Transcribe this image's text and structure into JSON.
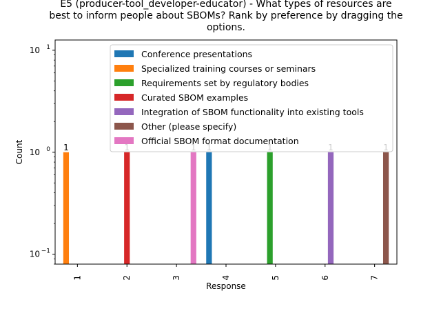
{
  "chart_data": {
    "type": "bar",
    "title_lines": [
      "E5 (producer-tool_developer-educator) - What types of resources are",
      "best to inform people about SBOMs? Rank by preference by dragging the",
      "options."
    ],
    "xlabel": "Response",
    "ylabel": "Count",
    "yscale": "log",
    "ylim": [
      0.08,
      12.6
    ],
    "y_ticks": [
      {
        "value": 0.1,
        "base": "10",
        "exp": "−1"
      },
      {
        "value": 1,
        "base": "10",
        "exp": "0"
      },
      {
        "value": 10,
        "base": "10",
        "exp": "1"
      }
    ],
    "categories": [
      "1",
      "2",
      "3",
      "4",
      "5",
      "6",
      "7"
    ],
    "legend_position": "upper-right",
    "grid": false,
    "series": [
      {
        "name": "Conference presentations",
        "color": "#1f77b4",
        "values": [
          0,
          0,
          0,
          1,
          0,
          0,
          0
        ]
      },
      {
        "name": "Specialized training courses or seminars",
        "color": "#ff7f0e",
        "values": [
          1,
          0,
          0,
          0,
          0,
          0,
          0
        ]
      },
      {
        "name": "Requirements set by regulatory bodies",
        "color": "#2ca02c",
        "values": [
          0,
          0,
          0,
          0,
          1,
          0,
          0
        ]
      },
      {
        "name": "Curated SBOM examples",
        "color": "#d62728",
        "values": [
          0,
          1,
          0,
          0,
          0,
          0,
          0
        ]
      },
      {
        "name": "Integration of SBOM functionality into existing tools",
        "color": "#9467bd",
        "values": [
          0,
          0,
          0,
          0,
          0,
          1,
          0
        ]
      },
      {
        "name": "Other (please specify)",
        "color": "#8c564b",
        "values": [
          0,
          0,
          0,
          0,
          0,
          0,
          1
        ]
      },
      {
        "name": "Official SBOM format documentation",
        "color": "#e377c2",
        "values": [
          0,
          0,
          1,
          0,
          0,
          0,
          0
        ]
      }
    ],
    "bar_labels": [
      {
        "series": 1,
        "category": 0,
        "text": "1"
      },
      {
        "series": 3,
        "category": 1,
        "text": "1"
      },
      {
        "series": 6,
        "category": 2,
        "text": "1"
      },
      {
        "series": 0,
        "category": 3,
        "text": "1"
      },
      {
        "series": 2,
        "category": 4,
        "text": "1"
      },
      {
        "series": 4,
        "category": 5,
        "text": "1"
      },
      {
        "series": 5,
        "category": 6,
        "text": "1"
      }
    ]
  }
}
